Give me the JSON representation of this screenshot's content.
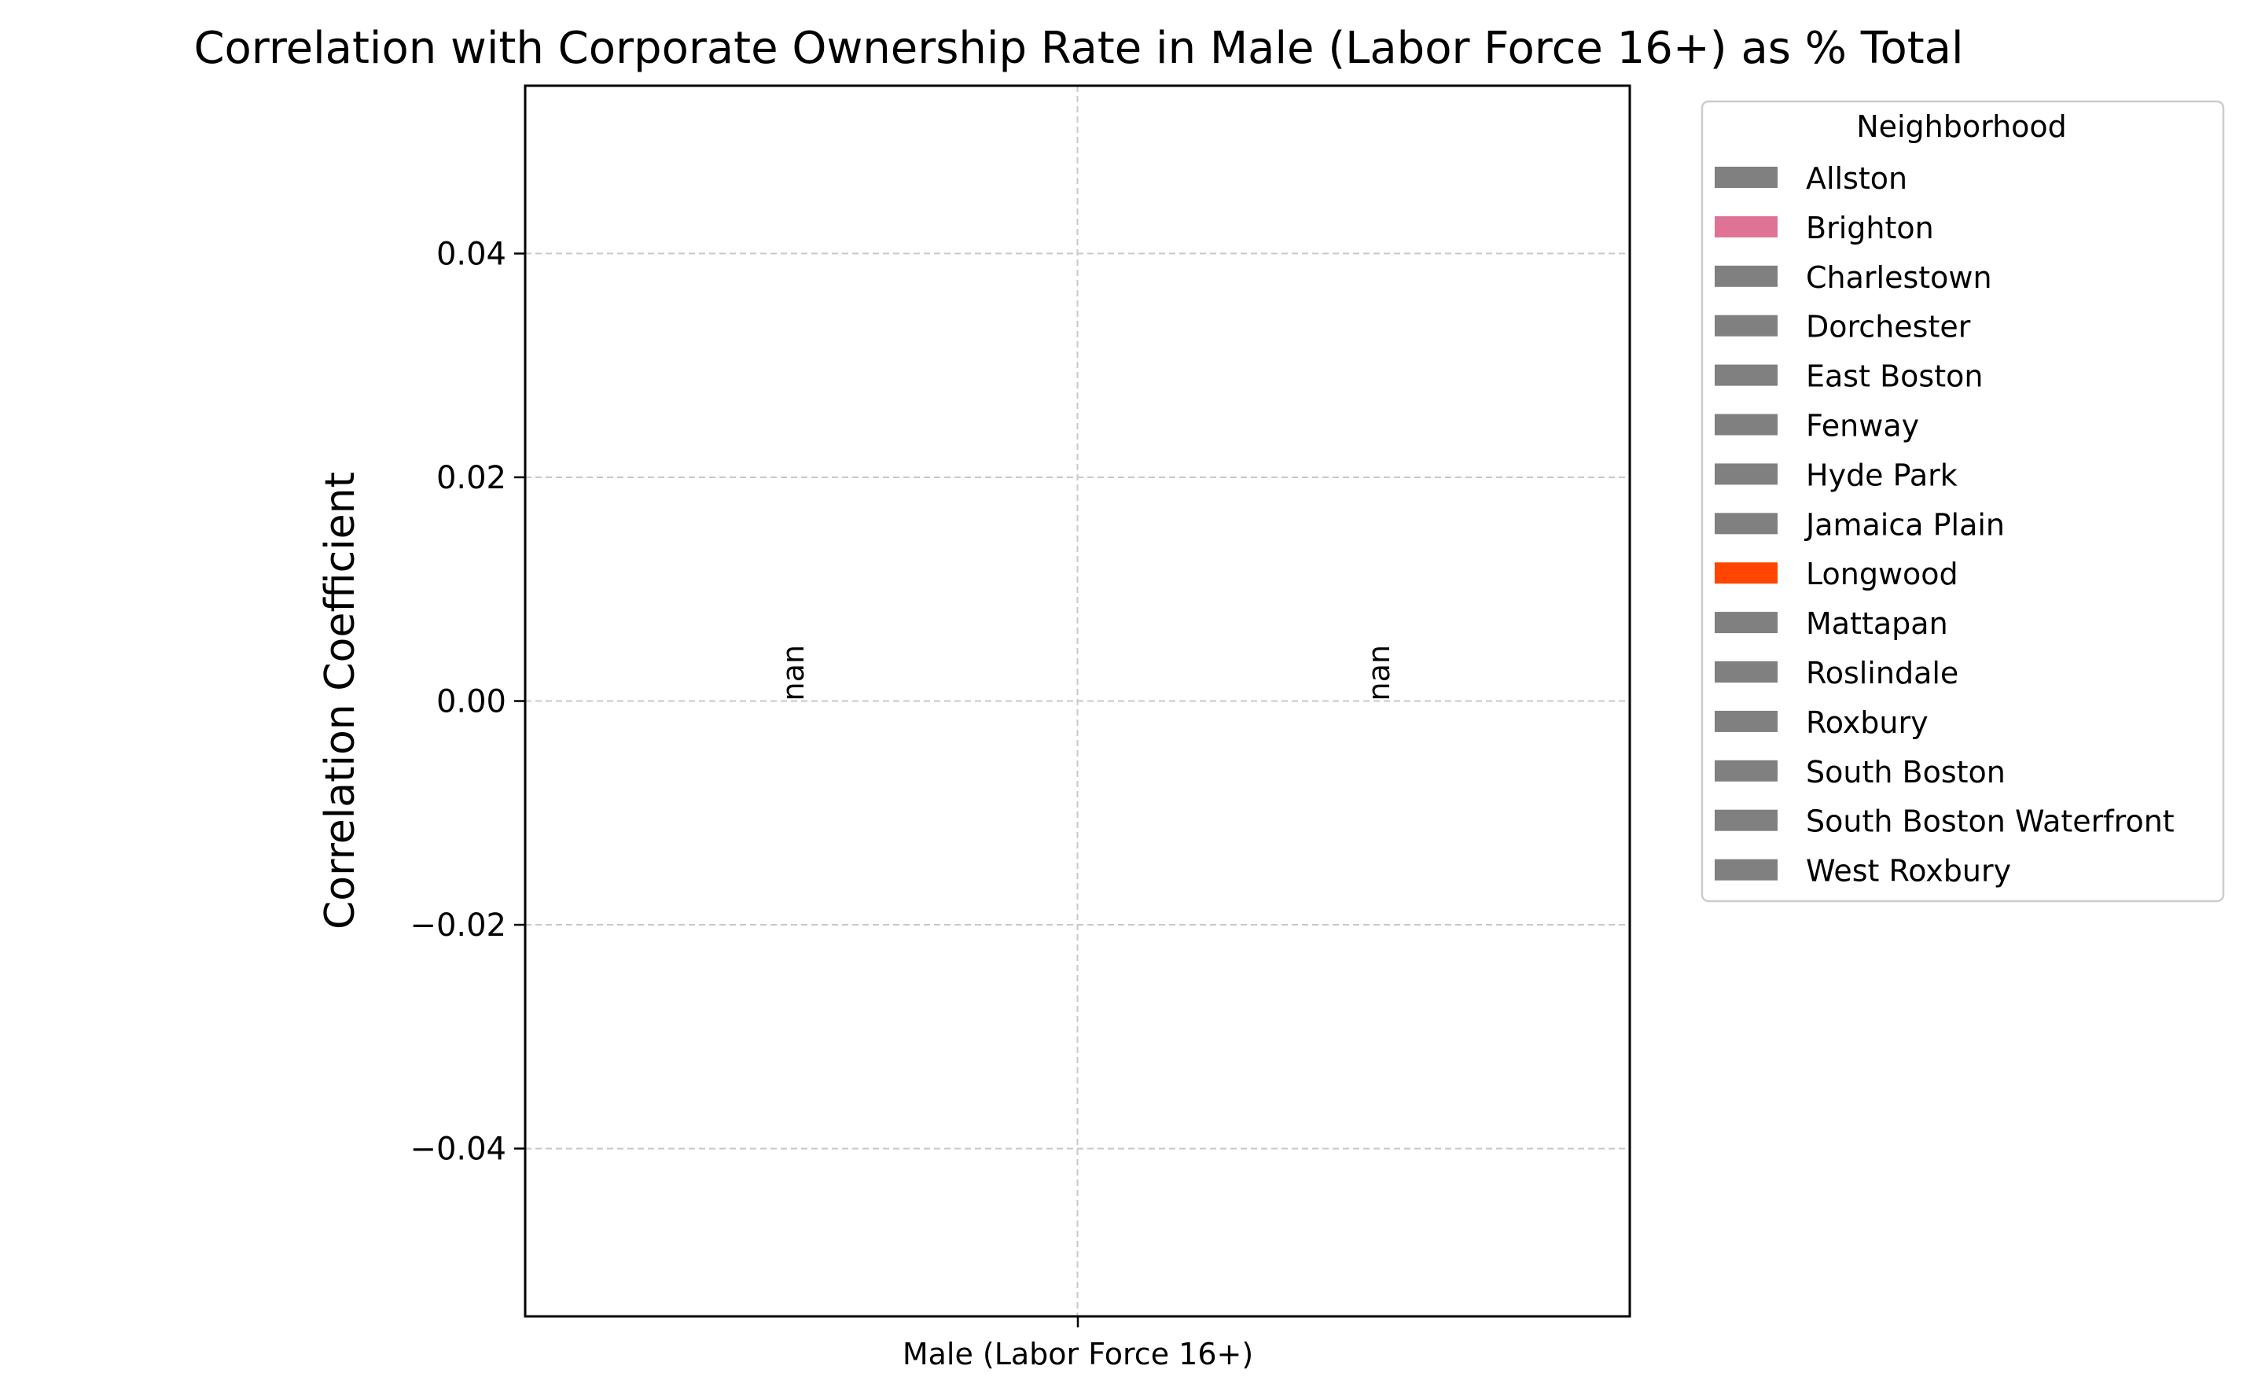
{
  "chart_data": {
    "type": "bar",
    "title": "Correlation with Corporate Ownership Rate in Male (Labor Force 16+) as % Total",
    "ylabel": "Correlation Coefficient",
    "xlabel": "",
    "categories": [
      "Male (Labor Force 16+)"
    ],
    "ylim": [
      -0.055,
      0.055
    ],
    "yticks": [
      0.04,
      0.02,
      0.0,
      -0.02,
      -0.04
    ],
    "ytick_labels": [
      "0.04",
      "0.02",
      "0.00",
      "−0.02",
      "−0.04"
    ],
    "grid": true,
    "legend": {
      "title": "Neighborhood",
      "placement": "outside-right",
      "entries": [
        {
          "name": "Allston",
          "color": "#808080"
        },
        {
          "name": "Brighton",
          "color": "#de7396"
        },
        {
          "name": "Charlestown",
          "color": "#808080"
        },
        {
          "name": "Dorchester",
          "color": "#808080"
        },
        {
          "name": "East Boston",
          "color": "#808080"
        },
        {
          "name": "Fenway",
          "color": "#808080"
        },
        {
          "name": "Hyde Park",
          "color": "#808080"
        },
        {
          "name": "Jamaica Plain",
          "color": "#808080"
        },
        {
          "name": "Longwood",
          "color": "#ff4500"
        },
        {
          "name": "Mattapan",
          "color": "#808080"
        },
        {
          "name": "Roslindale",
          "color": "#808080"
        },
        {
          "name": "Roxbury",
          "color": "#808080"
        },
        {
          "name": "South Boston",
          "color": "#808080"
        },
        {
          "name": "South Boston Waterfront",
          "color": "#808080"
        },
        {
          "name": "West Roxbury",
          "color": "#808080"
        }
      ]
    },
    "series": [
      {
        "neighborhood": "Brighton",
        "value": null,
        "value_label": "nan"
      },
      {
        "neighborhood": "Longwood",
        "value": null,
        "value_label": "nan"
      }
    ]
  }
}
